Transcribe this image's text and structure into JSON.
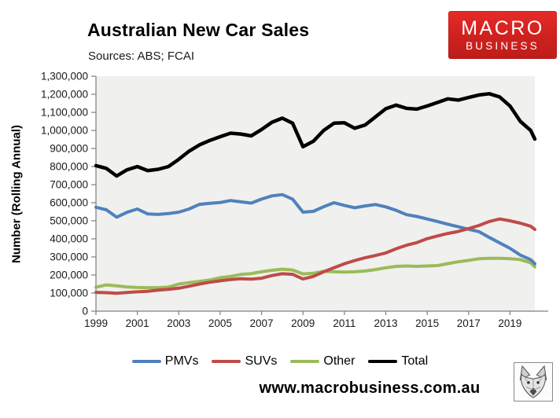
{
  "header": {
    "title": "Australian New Car Sales",
    "subtitle": "Sources: ABS; FCAI"
  },
  "logo": {
    "line1": "MACRO",
    "line2": "BUSINESS",
    "background": "#d32220",
    "text_color": "#ffffff"
  },
  "footer": {
    "website": "www.macrobusiness.com.au",
    "wolf_logo": "wolf-head-emblem"
  },
  "chart_data": {
    "type": "line",
    "title": "Australian New Car Sales",
    "subtitle": "Sources: ABS; FCAI",
    "xlabel": "",
    "ylabel": "Number (Rolling Annual)",
    "ylim": [
      0,
      1300000
    ],
    "ytick_step": 100000,
    "xlim": [
      1999,
      2020.2
    ],
    "xticks": [
      1999,
      2001,
      2003,
      2005,
      2007,
      2009,
      2011,
      2013,
      2015,
      2017,
      2019
    ],
    "grid": false,
    "plot_bg": "#f0f0ee",
    "axis_color": "#7f7f7f",
    "tick_text_color": "#1a1a1a",
    "legend_position": "bottom",
    "x": [
      1999,
      1999.5,
      2000,
      2000.5,
      2001,
      2001.5,
      2002,
      2002.5,
      2003,
      2003.5,
      2004,
      2004.5,
      2005,
      2005.5,
      2006,
      2006.5,
      2007,
      2007.5,
      2008,
      2008.5,
      2009,
      2009.5,
      2010,
      2010.5,
      2011,
      2011.5,
      2012,
      2012.5,
      2013,
      2013.5,
      2014,
      2014.5,
      2015,
      2015.5,
      2016,
      2016.5,
      2017,
      2017.5,
      2018,
      2018.5,
      2019,
      2019.5,
      2020,
      2020.2
    ],
    "series": [
      {
        "name": "PMVs",
        "color": "#4f81bd",
        "values": [
          575000,
          561000,
          520000,
          547000,
          565000,
          538000,
          535000,
          540000,
          548000,
          565000,
          591000,
          597000,
          601000,
          612000,
          605000,
          598000,
          620000,
          638000,
          645000,
          620000,
          548000,
          552000,
          578000,
          600000,
          585000,
          572000,
          582000,
          590000,
          577000,
          558000,
          534000,
          524000,
          510000,
          496000,
          481000,
          467000,
          453000,
          440000,
          408000,
          378000,
          348000,
          310000,
          285000,
          262000
        ]
      },
      {
        "name": "SUVs",
        "color": "#be4b48",
        "values": [
          104000,
          102000,
          99000,
          103000,
          107000,
          110000,
          116000,
          121000,
          127000,
          138000,
          150000,
          160000,
          168000,
          175000,
          179000,
          177000,
          182000,
          197000,
          207000,
          204000,
          178000,
          192000,
          218000,
          240000,
          262000,
          280000,
          295000,
          308000,
          322000,
          345000,
          365000,
          379000,
          401000,
          416000,
          430000,
          441000,
          457000,
          474000,
          496000,
          510000,
          500000,
          487000,
          470000,
          452000
        ]
      },
      {
        "name": "Other",
        "color": "#9bbb59",
        "values": [
          132000,
          145000,
          140000,
          134000,
          131000,
          130000,
          130000,
          133000,
          150000,
          158000,
          165000,
          172000,
          185000,
          192000,
          203000,
          208000,
          218000,
          226000,
          232000,
          228000,
          206000,
          210000,
          220000,
          218000,
          216000,
          218000,
          222000,
          230000,
          240000,
          248000,
          250000,
          248000,
          250000,
          252000,
          263000,
          273000,
          281000,
          290000,
          292000,
          292000,
          290000,
          285000,
          268000,
          245000
        ]
      },
      {
        "name": "Total",
        "color": "#000000",
        "values": [
          805000,
          790000,
          748000,
          782000,
          800000,
          778000,
          785000,
          800000,
          840000,
          885000,
          920000,
          945000,
          965000,
          985000,
          980000,
          970000,
          1005000,
          1045000,
          1068000,
          1040000,
          910000,
          940000,
          1000000,
          1040000,
          1042000,
          1012000,
          1030000,
          1075000,
          1120000,
          1140000,
          1122000,
          1118000,
          1135000,
          1155000,
          1175000,
          1168000,
          1182000,
          1196000,
          1203000,
          1185000,
          1135000,
          1050000,
          1000000,
          952000
        ]
      }
    ]
  }
}
